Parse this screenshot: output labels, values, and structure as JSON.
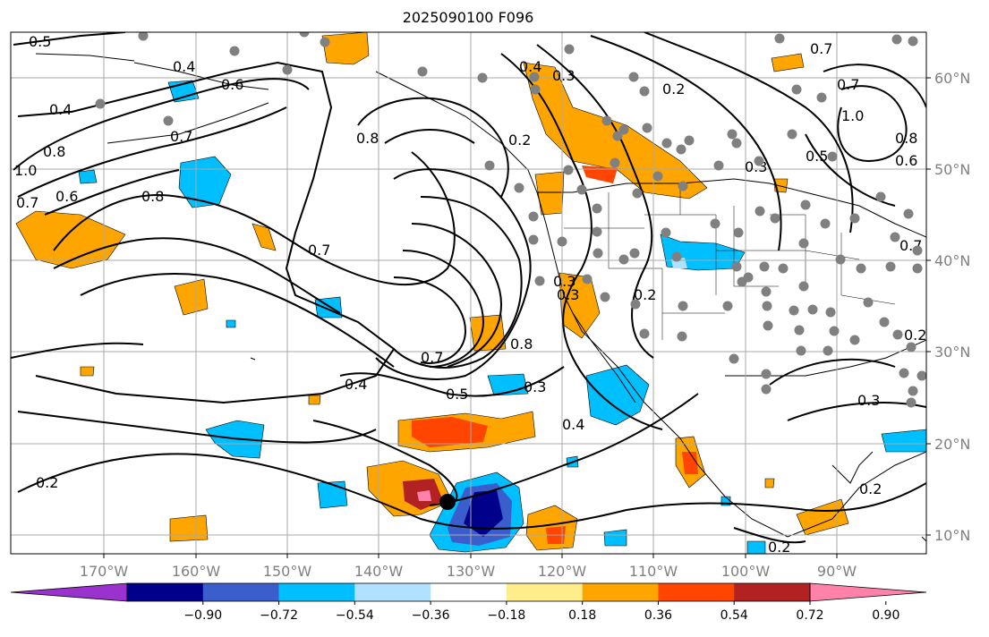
{
  "title": "2025090100 F096",
  "map": {
    "lon_range": [
      -180,
      -80
    ],
    "lat_range": [
      8,
      65
    ],
    "lon_labels": [
      "170°W",
      "160°W",
      "150°W",
      "140°W",
      "130°W",
      "120°W",
      "110°W",
      "100°W",
      "90°W"
    ],
    "lat_labels": [
      "10°N",
      "20°N",
      "30°N",
      "40°N",
      "50°N",
      "60°N"
    ],
    "grid": true,
    "contour_labels": [
      "0.5",
      "0.4",
      "0.6",
      "0.4",
      "0.8",
      "1.0",
      "0.7",
      "0.6",
      "0.7",
      "0.8",
      "0.8",
      "0.7",
      "0.4",
      "0.7",
      "0.5",
      "0.3",
      "0.8",
      "0.3",
      "0.2",
      "0.4",
      "0.3",
      "0.2",
      "0.3",
      "0.2",
      "0.2",
      "0.3",
      "0.4",
      "0.2",
      "0.2",
      "0.7",
      "1.0",
      "0.7",
      "0.8",
      "0.6",
      "0.5",
      "0.3",
      "0.7",
      "0.2"
    ],
    "point_color": "#808080",
    "storm_center_color": "#000000"
  },
  "colorbar": {
    "ticks": [
      "−0.90",
      "−0.72",
      "−0.54",
      "−0.36",
      "−0.18",
      "0.18",
      "0.36",
      "0.54",
      "0.72",
      "0.90"
    ],
    "colors": [
      "#9a32cd",
      "#00008b",
      "#3a5fcd",
      "#00bfff",
      "#b0e2ff",
      "#ffffff",
      "#ffec8b",
      "#ffa500",
      "#ff4500",
      "#b22222",
      "#ff82ab"
    ]
  }
}
